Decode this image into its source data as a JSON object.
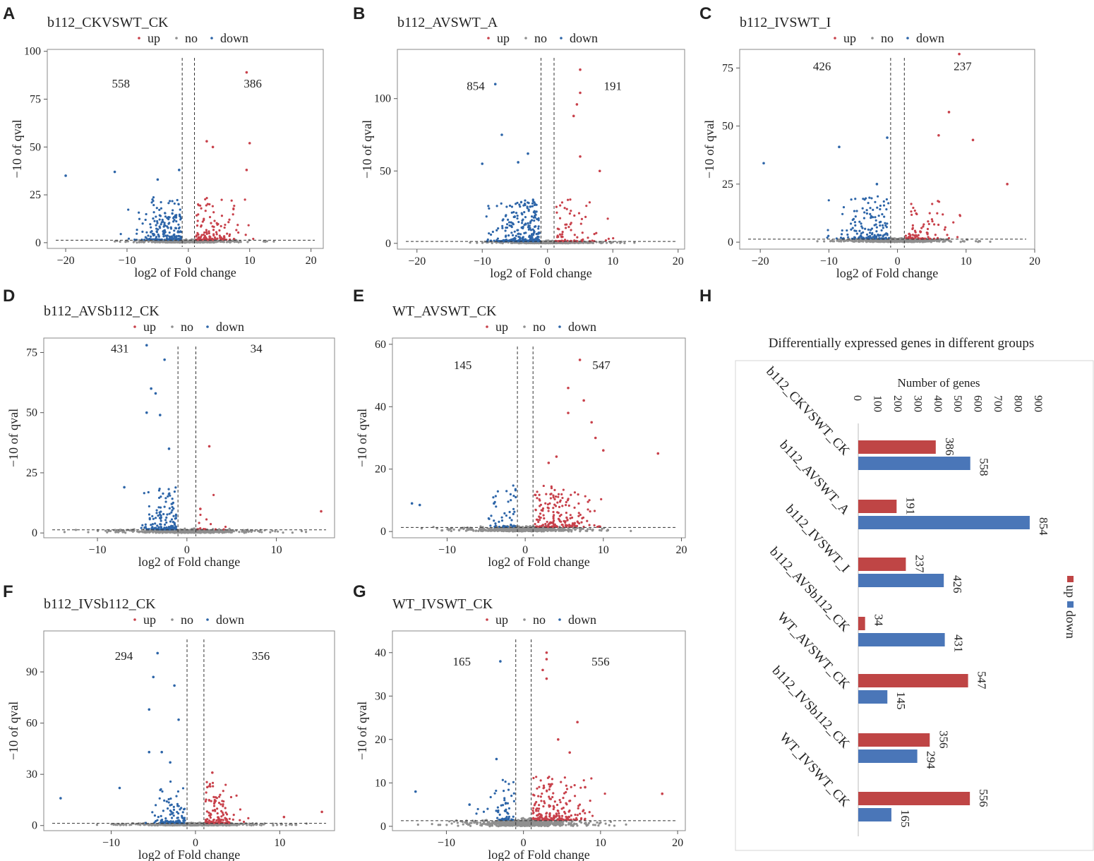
{
  "colors": {
    "up": "#c8414b",
    "no": "#8f8f8f",
    "down": "#2d65a8",
    "bar_up": "#bf4545",
    "bar_down": "#4a76b8"
  },
  "legend_labels": {
    "up": "up",
    "no": "no",
    "down": "down"
  },
  "chart_data": [
    {
      "type": "scatter",
      "panel": "A",
      "title": "b112_CKVSWT_CK",
      "xlabel": "log2 of Fold change",
      "ylabel": "−10 of qval",
      "xlim": [
        -23,
        22
      ],
      "ylim": [
        -3,
        101
      ],
      "xticks": [
        -20,
        -10,
        0,
        10,
        20
      ],
      "yticks": [
        0,
        25,
        50,
        75,
        100
      ],
      "xtick_labels": [
        "−20",
        "−10",
        "0",
        "10",
        "20"
      ],
      "ytick_labels": [
        "0",
        "25",
        "50",
        "75",
        "100"
      ],
      "threshold_x": [
        -1,
        1
      ],
      "threshold_y": 1.3,
      "count_down": 558,
      "count_up": 386,
      "count_label_y": 81,
      "highlights": {
        "up": [
          [
            9.5,
            89
          ],
          [
            10,
            52
          ],
          [
            3,
            53
          ],
          [
            9.5,
            38
          ],
          [
            4,
            50
          ]
        ],
        "down": [
          [
            -20,
            35
          ],
          [
            -12,
            37
          ],
          [
            -1.5,
            38
          ],
          [
            -5,
            33
          ]
        ]
      }
    },
    {
      "type": "scatter",
      "panel": "B",
      "title": "b112_AVSWT_A",
      "xlabel": "log2 of Fold change",
      "ylabel": "−10 of qval",
      "xlim": [
        -23,
        21
      ],
      "ylim": [
        -4,
        134
      ],
      "xticks": [
        -20,
        -10,
        0,
        10,
        20
      ],
      "yticks": [
        0,
        50,
        100
      ],
      "xtick_labels": [
        "−20",
        "−10",
        "0",
        "10",
        "20"
      ],
      "ytick_labels": [
        "0",
        "50",
        "100"
      ],
      "threshold_x": [
        -1,
        1
      ],
      "threshold_y": 1.3,
      "count_down": 854,
      "count_up": 191,
      "count_label_y": 106,
      "highlights": {
        "up": [
          [
            5,
            120
          ],
          [
            5,
            104
          ],
          [
            4.5,
            96
          ],
          [
            4,
            88
          ],
          [
            5,
            60
          ],
          [
            8,
            50
          ]
        ],
        "down": [
          [
            -8,
            110
          ],
          [
            -7,
            75
          ],
          [
            -10,
            55
          ],
          [
            -4.5,
            56
          ],
          [
            -3,
            62
          ]
        ]
      }
    },
    {
      "type": "scatter",
      "panel": "C",
      "title": "b112_IVSWT_I",
      "xlabel": "log2 of Fold change",
      "ylabel": "−10 of qval",
      "xlim": [
        -23,
        20
      ],
      "ylim": [
        -3,
        83
      ],
      "xticks": [
        -20,
        -10,
        0,
        10,
        20
      ],
      "yticks": [
        0,
        25,
        50,
        75
      ],
      "xtick_labels": [
        "−20",
        "−10",
        "0",
        "10",
        "20"
      ],
      "ytick_labels": [
        "0",
        "25",
        "50",
        "75"
      ],
      "threshold_x": [
        -1,
        1
      ],
      "threshold_y": 1.3,
      "count_down": 426,
      "count_up": 237,
      "count_label_y": 74,
      "highlights": {
        "up": [
          [
            9,
            81
          ],
          [
            7.5,
            56
          ],
          [
            6,
            46
          ],
          [
            11,
            44
          ],
          [
            16,
            25
          ]
        ],
        "down": [
          [
            -8.5,
            41
          ],
          [
            -19.5,
            34
          ],
          [
            -1.5,
            45
          ],
          [
            -3,
            25
          ]
        ]
      }
    },
    {
      "type": "scatter",
      "panel": "D",
      "title": "b112_AVSb112_CK",
      "xlabel": "log2 of Fold change",
      "ylabel": "−10 of qval",
      "xlim": [
        -16,
        16.5
      ],
      "ylim": [
        -2,
        81
      ],
      "xticks": [
        -10,
        0,
        10
      ],
      "yticks": [
        0,
        25,
        50,
        75
      ],
      "xtick_labels": [
        "−10",
        "0",
        "10"
      ],
      "ytick_labels": [
        "0",
        "25",
        "50",
        "75"
      ],
      "threshold_x": [
        -1,
        1
      ],
      "threshold_y": 1.3,
      "count_down": 431,
      "count_up": 34,
      "count_label_y": 75,
      "highlights": {
        "up": [
          [
            2.5,
            36
          ],
          [
            15,
            9
          ],
          [
            1.5,
            10
          ]
        ],
        "down": [
          [
            -4.5,
            78
          ],
          [
            -2.5,
            72
          ],
          [
            -4,
            60
          ],
          [
            -3.5,
            58
          ],
          [
            -3,
            49
          ],
          [
            -4.5,
            50
          ],
          [
            -2,
            35
          ],
          [
            -7,
            19
          ]
        ]
      }
    },
    {
      "type": "scatter",
      "panel": "E",
      "title": "WT_AVSWT_CK",
      "xlabel": "log2 of Fold change",
      "ylabel": "−10 of qval",
      "xlim": [
        -17,
        20.5
      ],
      "ylim": [
        -2,
        62
      ],
      "xticks": [
        -10,
        0,
        10,
        20
      ],
      "yticks": [
        0,
        20,
        40,
        60
      ],
      "xtick_labels": [
        "−10",
        "0",
        "10",
        "20"
      ],
      "ytick_labels": [
        "0",
        "20",
        "40",
        "60"
      ],
      "threshold_x": [
        -1,
        1
      ],
      "threshold_y": 1.3,
      "count_down": 145,
      "count_up": 547,
      "count_label_y": 52,
      "highlights": {
        "up": [
          [
            7,
            55
          ],
          [
            5.5,
            46
          ],
          [
            7.5,
            42
          ],
          [
            5.5,
            38
          ],
          [
            8.5,
            35
          ],
          [
            9,
            30
          ],
          [
            10,
            26
          ],
          [
            17,
            25
          ],
          [
            4,
            24
          ],
          [
            3,
            22
          ]
        ],
        "down": [
          [
            -14.5,
            9
          ],
          [
            -13.5,
            8.5
          ],
          [
            -4,
            9
          ]
        ]
      }
    },
    {
      "type": "scatter",
      "panel": "F",
      "title": "b112_IVSb112_CK",
      "xlabel": "log2 of Fold change",
      "ylabel": "−10 of qval",
      "xlim": [
        -18,
        16.5
      ],
      "ylim": [
        -3,
        114
      ],
      "xticks": [
        -10,
        0,
        10
      ],
      "yticks": [
        0,
        30,
        60,
        90
      ],
      "xtick_labels": [
        "−10",
        "0",
        "10"
      ],
      "ytick_labels": [
        "0",
        "30",
        "60",
        "90"
      ],
      "threshold_x": [
        -1,
        1
      ],
      "threshold_y": 1.3,
      "count_down": 294,
      "count_up": 356,
      "count_label_y": 97,
      "highlights": {
        "up": [
          [
            2,
            31
          ],
          [
            15,
            8
          ],
          [
            10.5,
            5
          ]
        ],
        "down": [
          [
            -4.5,
            101
          ],
          [
            -5,
            87
          ],
          [
            -2.5,
            82
          ],
          [
            -5.5,
            68
          ],
          [
            -2,
            62
          ],
          [
            -5.5,
            43
          ],
          [
            -4,
            43
          ],
          [
            -3,
            37
          ],
          [
            -9,
            22
          ],
          [
            -16,
            16
          ]
        ]
      }
    },
    {
      "type": "scatter",
      "panel": "G",
      "title": "WT_IVSWT_CK",
      "xlabel": "log2 of Fold change",
      "ylabel": "−10 of qval",
      "xlim": [
        -17,
        21
      ],
      "ylim": [
        -1,
        45
      ],
      "xticks": [
        -10,
        0,
        10,
        20
      ],
      "yticks": [
        0,
        10,
        20,
        30,
        40
      ],
      "xtick_labels": [
        "−10",
        "0",
        "10",
        "20"
      ],
      "ytick_labels": [
        "0",
        "10",
        "20",
        "30",
        "40"
      ],
      "threshold_x": [
        -1,
        1
      ],
      "threshold_y": 1.3,
      "count_down": 165,
      "count_up": 556,
      "count_label_y": 37,
      "highlights": {
        "up": [
          [
            3,
            40
          ],
          [
            3,
            38.5
          ],
          [
            2.5,
            36
          ],
          [
            3,
            34
          ],
          [
            7,
            24
          ],
          [
            4.5,
            20
          ],
          [
            6,
            17
          ],
          [
            8,
            9
          ],
          [
            18,
            7.5
          ]
        ],
        "down": [
          [
            -3,
            38
          ],
          [
            -3.5,
            15.5
          ],
          [
            -14,
            8
          ],
          [
            -7,
            5
          ]
        ]
      }
    },
    {
      "type": "bar",
      "panel": "H",
      "title": "Differentially expressed genes in different groups",
      "axis_title": "Number of genes",
      "ticks": [
        0,
        100,
        200,
        300,
        400,
        500,
        600,
        700,
        800,
        900
      ],
      "xlim": [
        0,
        900
      ],
      "categories": [
        "b112_CKVSWT_CK",
        "b112_AVSWT_A",
        "b112_IVSWT_I",
        "b112_AVSb112_CK",
        "WT_AVSWT_CK",
        "b112_IVSb112_CK",
        "WT_IVSWT_CK"
      ],
      "series": [
        {
          "name": "up",
          "values": [
            386,
            191,
            237,
            34,
            547,
            356,
            556
          ]
        },
        {
          "name": "down",
          "values": [
            558,
            854,
            426,
            431,
            145,
            294,
            165
          ]
        }
      ],
      "legend": [
        "up",
        "down"
      ]
    }
  ]
}
